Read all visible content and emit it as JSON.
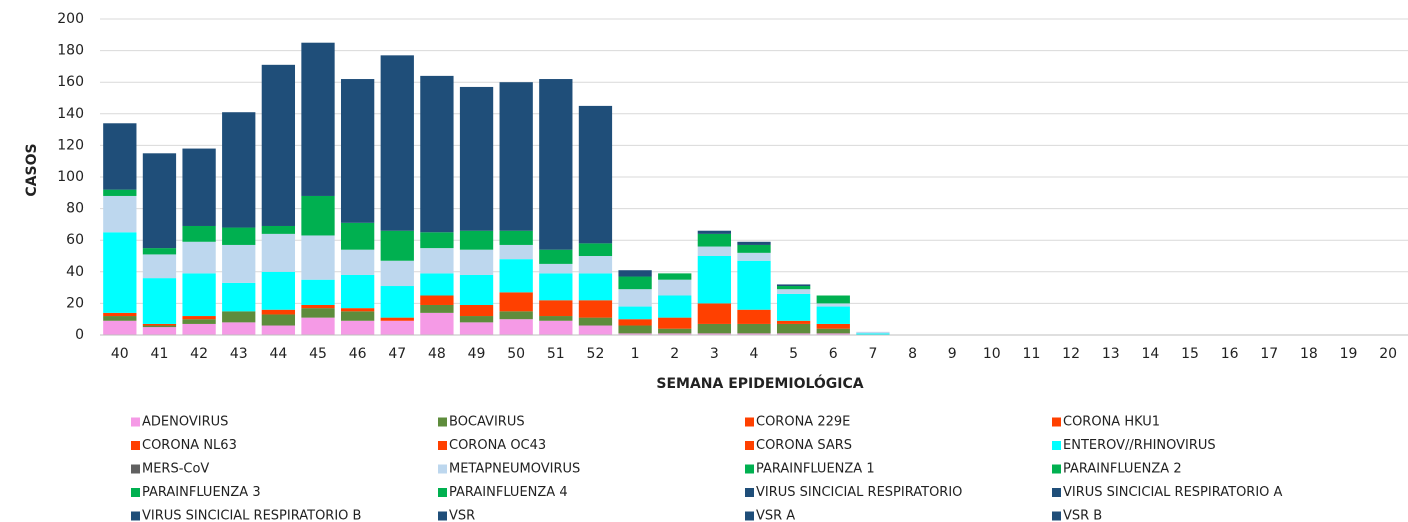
{
  "chart_data": {
    "type": "stacked_bar",
    "y_label": "CASOS",
    "x_label": "SEMANA EPIDEMIOLÓGICA",
    "categories": [
      "40",
      "41",
      "42",
      "43",
      "44",
      "45",
      "46",
      "47",
      "48",
      "49",
      "50",
      "51",
      "52",
      "1",
      "2",
      "3",
      "4",
      "5",
      "6",
      "7",
      "8",
      "9",
      "10",
      "11",
      "12",
      "13",
      "14",
      "15",
      "16",
      "17",
      "18",
      "19",
      "20"
    ],
    "ylim": [
      0,
      200
    ],
    "yticks": [
      0,
      20,
      40,
      60,
      80,
      100,
      120,
      140,
      160,
      180,
      200
    ],
    "grid": true,
    "series": [
      {
        "name": "ADENOVIRUS",
        "color": "#f59ae6",
        "values": [
          9,
          5,
          7,
          8,
          6,
          11,
          9,
          9,
          14,
          8,
          10,
          9,
          6,
          1,
          1,
          1,
          1,
          1,
          1,
          0,
          0,
          0,
          0,
          0,
          0,
          0,
          0,
          0,
          0,
          0,
          0,
          0,
          0
        ]
      },
      {
        "name": "BOCAVIRUS",
        "color": "#5e8c3c",
        "values": [
          3,
          1,
          3,
          7,
          7,
          6,
          6,
          0,
          5,
          4,
          5,
          3,
          5,
          5,
          3,
          6,
          6,
          6,
          3,
          0,
          0,
          0,
          0,
          0,
          0,
          0,
          0,
          0,
          0,
          0,
          0,
          0,
          0
        ]
      },
      {
        "name": "CORONA 229E",
        "color": "#ff4000",
        "values": [
          0,
          0,
          0,
          0,
          0,
          0,
          0,
          0,
          0,
          0,
          0,
          0,
          0,
          0,
          0,
          0,
          0,
          0,
          0,
          0,
          0,
          0,
          0,
          0,
          0,
          0,
          0,
          0,
          0,
          0,
          0,
          0,
          0
        ]
      },
      {
        "name": "CORONA HKU1",
        "color": "#ff4000",
        "values": [
          0,
          0,
          0,
          0,
          0,
          0,
          0,
          0,
          0,
          0,
          0,
          0,
          0,
          0,
          0,
          0,
          0,
          0,
          0,
          0,
          0,
          0,
          0,
          0,
          0,
          0,
          0,
          0,
          0,
          0,
          0,
          0,
          0
        ]
      },
      {
        "name": "CORONA NL63",
        "color": "#ff4000",
        "values": [
          0,
          0,
          0,
          0,
          0,
          0,
          0,
          0,
          0,
          0,
          0,
          0,
          0,
          0,
          0,
          0,
          0,
          0,
          0,
          0,
          0,
          0,
          0,
          0,
          0,
          0,
          0,
          0,
          0,
          0,
          0,
          0,
          0
        ]
      },
      {
        "name": "CORONA OC43",
        "color": "#ff4000",
        "values": [
          2,
          1,
          2,
          0,
          3,
          2,
          2,
          2,
          6,
          7,
          12,
          10,
          11,
          4,
          7,
          13,
          9,
          2,
          3,
          0,
          0,
          0,
          0,
          0,
          0,
          0,
          0,
          0,
          0,
          0,
          0,
          0,
          0
        ]
      },
      {
        "name": "CORONA SARS",
        "color": "#ff4000",
        "values": [
          0,
          0,
          0,
          0,
          0,
          0,
          0,
          0,
          0,
          0,
          0,
          0,
          0,
          0,
          0,
          0,
          0,
          0,
          0,
          0,
          0,
          0,
          0,
          0,
          0,
          0,
          0,
          0,
          0,
          0,
          0,
          0,
          0
        ]
      },
      {
        "name": "ENTEROV//RHINOVIRUS",
        "color": "#00ffff",
        "values": [
          51,
          29,
          27,
          18,
          24,
          16,
          21,
          20,
          14,
          19,
          21,
          17,
          17,
          8,
          14,
          30,
          31,
          17,
          11,
          1,
          0,
          0,
          0,
          0,
          0,
          0,
          0,
          0,
          0,
          0,
          0,
          0,
          0
        ]
      },
      {
        "name": "MERS-CoV",
        "color": "#606060",
        "values": [
          0,
          0,
          0,
          0,
          0,
          0,
          0,
          0,
          0,
          0,
          0,
          0,
          0,
          0,
          0,
          0,
          0,
          0,
          0,
          0,
          0,
          0,
          0,
          0,
          0,
          0,
          0,
          0,
          0,
          0,
          0,
          0,
          0
        ]
      },
      {
        "name": "METAPNEUMOVIRUS",
        "color": "#bdd7ee",
        "values": [
          23,
          15,
          20,
          24,
          24,
          28,
          16,
          16,
          16,
          16,
          9,
          6,
          11,
          11,
          10,
          6,
          5,
          3,
          2,
          1,
          0,
          0,
          0,
          0,
          0,
          0,
          0,
          0,
          0,
          0,
          0,
          0,
          0
        ]
      },
      {
        "name": "PARAINFLUENZA 1",
        "color": "#00b050",
        "values": [
          0,
          0,
          0,
          0,
          0,
          0,
          0,
          0,
          0,
          0,
          0,
          0,
          0,
          0,
          0,
          0,
          0,
          0,
          0,
          0,
          0,
          0,
          0,
          0,
          0,
          0,
          0,
          0,
          0,
          0,
          0,
          0,
          0
        ]
      },
      {
        "name": "PARAINFLUENZA 2",
        "color": "#00b050",
        "values": [
          0,
          0,
          0,
          0,
          0,
          0,
          0,
          0,
          0,
          0,
          0,
          0,
          0,
          0,
          0,
          0,
          0,
          0,
          0,
          0,
          0,
          0,
          0,
          0,
          0,
          0,
          0,
          0,
          0,
          0,
          0,
          0,
          0
        ]
      },
      {
        "name": "PARAINFLUENZA 3",
        "color": "#00b050",
        "values": [
          4,
          4,
          10,
          11,
          5,
          25,
          17,
          19,
          10,
          12,
          9,
          9,
          8,
          8,
          4,
          8,
          5,
          2,
          5,
          0,
          0,
          0,
          0,
          0,
          0,
          0,
          0,
          0,
          0,
          0,
          0,
          0,
          0
        ]
      },
      {
        "name": "PARAINFLUENZA 4",
        "color": "#00b050",
        "values": [
          0,
          0,
          0,
          0,
          0,
          0,
          0,
          0,
          0,
          0,
          0,
          0,
          0,
          0,
          0,
          0,
          0,
          0,
          0,
          0,
          0,
          0,
          0,
          0,
          0,
          0,
          0,
          0,
          0,
          0,
          0,
          0,
          0
        ]
      },
      {
        "name": "VIRUS SINCICIAL RESPIRATORIO",
        "color": "#1f4e79",
        "values": [
          0,
          0,
          0,
          0,
          0,
          0,
          0,
          0,
          0,
          0,
          0,
          0,
          0,
          0,
          0,
          0,
          0,
          0,
          0,
          0,
          0,
          0,
          0,
          0,
          0,
          0,
          0,
          0,
          0,
          0,
          0,
          0,
          0
        ]
      },
      {
        "name": "VIRUS SINCICIAL RESPIRATORIO A",
        "color": "#1f4e79",
        "values": [
          0,
          0,
          0,
          0,
          0,
          0,
          0,
          0,
          0,
          0,
          0,
          0,
          0,
          0,
          0,
          0,
          0,
          0,
          0,
          0,
          0,
          0,
          0,
          0,
          0,
          0,
          0,
          0,
          0,
          0,
          0,
          0,
          0
        ]
      },
      {
        "name": "VIRUS SINCICIAL RESPIRATORIO B",
        "color": "#1f4e79",
        "values": [
          0,
          0,
          0,
          0,
          0,
          0,
          0,
          0,
          0,
          0,
          0,
          0,
          0,
          0,
          0,
          0,
          0,
          0,
          0,
          0,
          0,
          0,
          0,
          0,
          0,
          0,
          0,
          0,
          0,
          0,
          0,
          0,
          0
        ]
      },
      {
        "name": "VSR",
        "color": "#1f4e79",
        "values": [
          42,
          60,
          49,
          73,
          102,
          97,
          91,
          111,
          99,
          91,
          94,
          108,
          87,
          4,
          0,
          2,
          2,
          1,
          0,
          0,
          0,
          0,
          0,
          0,
          0,
          0,
          0,
          0,
          0,
          0,
          0,
          0,
          0
        ]
      },
      {
        "name": "VSR A",
        "color": "#1f4e79",
        "values": [
          0,
          0,
          0,
          0,
          0,
          0,
          0,
          0,
          0,
          0,
          0,
          0,
          0,
          0,
          0,
          0,
          0,
          0,
          0,
          0,
          0,
          0,
          0,
          0,
          0,
          0,
          0,
          0,
          0,
          0,
          0,
          0,
          0
        ]
      },
      {
        "name": "VSR B",
        "color": "#1f4e79",
        "values": [
          0,
          0,
          0,
          0,
          0,
          0,
          0,
          0,
          0,
          0,
          0,
          0,
          0,
          0,
          0,
          0,
          0,
          0,
          0,
          0,
          0,
          0,
          0,
          0,
          0,
          0,
          0,
          0,
          0,
          0,
          0,
          0,
          0
        ]
      }
    ]
  }
}
